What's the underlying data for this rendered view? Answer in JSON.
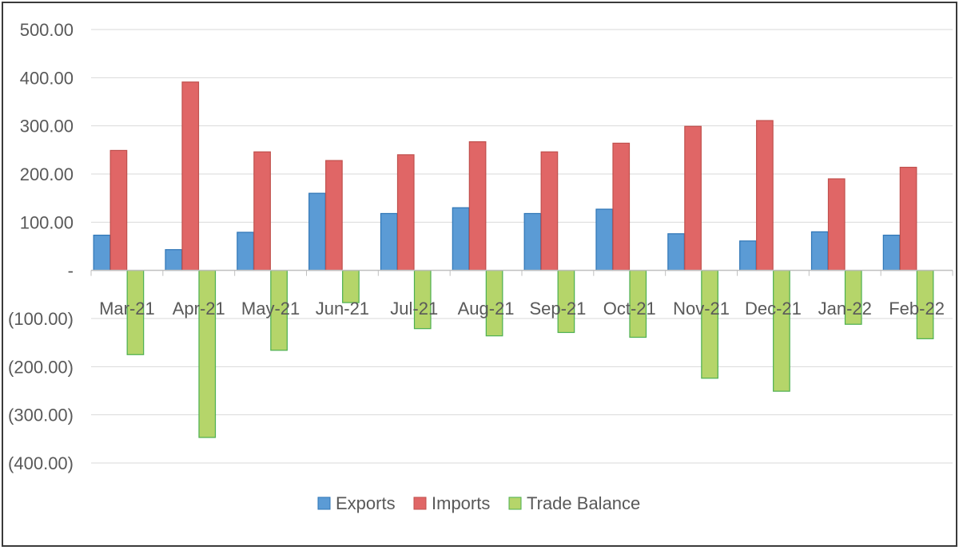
{
  "chart_data": {
    "type": "bar",
    "title": "",
    "xlabel": "",
    "ylabel": "",
    "categories": [
      "Mar-21",
      "Apr-21",
      "May-21",
      "Jun-21",
      "Jul-21",
      "Aug-21",
      "Sep-21",
      "Oct-21",
      "Nov-21",
      "Dec-21",
      "Jan-22",
      "Feb-22"
    ],
    "series": [
      {
        "name": "Exports",
        "color": "#5b9bd5",
        "edge": "#2e75b6",
        "values": [
          73,
          43,
          79,
          160,
          118,
          130,
          118,
          127,
          76,
          61,
          80,
          73
        ]
      },
      {
        "name": "Imports",
        "color": "#e06666",
        "edge": "#c0504d",
        "values": [
          249,
          391,
          246,
          228,
          240,
          267,
          246,
          264,
          299,
          311,
          190,
          214
        ]
      },
      {
        "name": "Trade Balance",
        "color": "#b5d56a",
        "edge": "#4caf50",
        "values": [
          -175,
          -347,
          -166,
          -67,
          -121,
          -136,
          -129,
          -139,
          -224,
          -251,
          -112,
          -142
        ]
      }
    ],
    "ylim": [
      -400,
      500
    ],
    "yticks": [
      500,
      400,
      300,
      200,
      100,
      0,
      -100,
      -200,
      -300,
      -400
    ],
    "ytick_labels": [
      "500.00",
      "400.00",
      "300.00",
      "200.00",
      "100.00",
      "-",
      "(100.00)",
      "(200.00)",
      "(300.00)",
      "(400.00)"
    ],
    "grid": true,
    "legend_position": "bottom-center"
  }
}
